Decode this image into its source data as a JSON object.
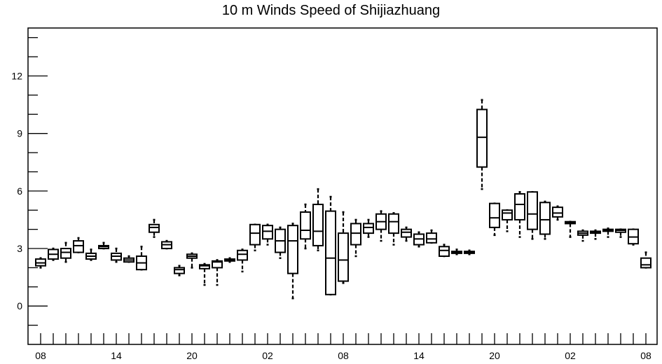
{
  "chart_data": {
    "type": "box",
    "title": "10 m Winds Speed of Shijiazhuang",
    "xlabel": "",
    "ylabel": "",
    "ylim": [
      -2,
      14.5
    ],
    "y_ticks": [
      0,
      3,
      6,
      9,
      12
    ],
    "x_tick_labels": [
      "08",
      "14",
      "20",
      "02",
      "08",
      "14",
      "20",
      "02",
      "08"
    ],
    "x_tick_label_index": [
      0,
      6,
      12,
      18,
      24,
      30,
      36,
      42,
      48
    ],
    "n_positions": 49,
    "grid": false,
    "boxes": [
      {
        "i": 0,
        "whisker_low": 2.0,
        "q1": 2.1,
        "median": 2.25,
        "q3": 2.45,
        "whisker_high": 2.5
      },
      {
        "i": 1,
        "whisker_low": 2.4,
        "q1": 2.45,
        "median": 2.7,
        "q3": 2.95,
        "whisker_high": 3.0
      },
      {
        "i": 2,
        "whisker_low": 2.3,
        "q1": 2.5,
        "median": 2.8,
        "q3": 3.0,
        "whisker_high": 3.3
      },
      {
        "i": 3,
        "whisker_low": 2.8,
        "q1": 2.8,
        "median": 3.15,
        "q3": 3.4,
        "whisker_high": 3.55
      },
      {
        "i": 4,
        "whisker_low": 2.4,
        "q1": 2.45,
        "median": 2.6,
        "q3": 2.75,
        "whisker_high": 2.95
      },
      {
        "i": 5,
        "whisker_low": 3.0,
        "q1": 3.0,
        "median": 3.1,
        "q3": 3.15,
        "whisker_high": 3.3
      },
      {
        "i": 6,
        "whisker_low": 2.3,
        "q1": 2.4,
        "median": 2.6,
        "q3": 2.75,
        "whisker_high": 3.0
      },
      {
        "i": 7,
        "whisker_low": 2.3,
        "q1": 2.3,
        "median": 2.4,
        "q3": 2.5,
        "whisker_high": 2.6
      },
      {
        "i": 8,
        "whisker_low": 1.9,
        "q1": 1.9,
        "median": 2.25,
        "q3": 2.6,
        "whisker_high": 3.1
      },
      {
        "i": 9,
        "whisker_low": 3.6,
        "q1": 3.85,
        "median": 4.1,
        "q3": 4.25,
        "whisker_high": 4.5
      },
      {
        "i": 10,
        "whisker_low": 3.0,
        "q1": 3.0,
        "median": 3.2,
        "q3": 3.35,
        "whisker_high": 3.4
      },
      {
        "i": 11,
        "whisker_low": 1.6,
        "q1": 1.7,
        "median": 1.9,
        "q3": 2.0,
        "whisker_high": 2.1
      },
      {
        "i": 12,
        "whisker_low": 2.0,
        "q1": 2.5,
        "median": 2.6,
        "q3": 2.7,
        "whisker_high": 2.75
      },
      {
        "i": 13,
        "whisker_low": 1.1,
        "q1": 1.95,
        "median": 2.1,
        "q3": 2.15,
        "whisker_high": 2.2
      },
      {
        "i": 14,
        "whisker_low": 1.1,
        "q1": 2.0,
        "median": 2.3,
        "q3": 2.35,
        "whisker_high": 2.4
      },
      {
        "i": 15,
        "whisker_low": 2.3,
        "q1": 2.35,
        "median": 2.4,
        "q3": 2.45,
        "whisker_high": 2.5
      },
      {
        "i": 16,
        "whisker_low": 1.8,
        "q1": 2.4,
        "median": 2.7,
        "q3": 2.9,
        "whisker_high": 2.95
      },
      {
        "i": 17,
        "whisker_low": 2.9,
        "q1": 3.2,
        "median": 3.8,
        "q3": 4.25,
        "whisker_high": 4.25
      },
      {
        "i": 18,
        "whisker_low": 3.2,
        "q1": 3.5,
        "median": 3.9,
        "q3": 4.2,
        "whisker_high": 4.25
      },
      {
        "i": 19,
        "whisker_low": 2.5,
        "q1": 2.8,
        "median": 3.4,
        "q3": 4.0,
        "whisker_high": 4.1
      },
      {
        "i": 20,
        "whisker_low": 0.4,
        "q1": 1.7,
        "median": 3.4,
        "q3": 4.2,
        "whisker_high": 4.3
      },
      {
        "i": 21,
        "whisker_low": 3.0,
        "q1": 3.5,
        "median": 3.95,
        "q3": 4.9,
        "whisker_high": 5.3
      },
      {
        "i": 22,
        "whisker_low": 2.9,
        "q1": 3.15,
        "median": 3.9,
        "q3": 5.3,
        "whisker_high": 6.1
      },
      {
        "i": 23,
        "whisker_low": 0.6,
        "q1": 0.6,
        "median": 2.5,
        "q3": 4.95,
        "whisker_high": 5.7
      },
      {
        "i": 24,
        "whisker_low": 1.2,
        "q1": 1.3,
        "median": 2.4,
        "q3": 3.8,
        "whisker_high": 4.9
      },
      {
        "i": 25,
        "whisker_low": 2.6,
        "q1": 3.2,
        "median": 3.8,
        "q3": 4.3,
        "whisker_high": 4.5
      },
      {
        "i": 26,
        "whisker_low": 3.6,
        "q1": 3.8,
        "median": 4.1,
        "q3": 4.3,
        "whisker_high": 4.5
      },
      {
        "i": 27,
        "whisker_low": 3.4,
        "q1": 4.0,
        "median": 4.4,
        "q3": 4.8,
        "whisker_high": 4.95
      },
      {
        "i": 28,
        "whisker_low": 3.2,
        "q1": 3.8,
        "median": 4.4,
        "q3": 4.8,
        "whisker_high": 4.85
      },
      {
        "i": 29,
        "whisker_low": 3.4,
        "q1": 3.6,
        "median": 3.85,
        "q3": 4.0,
        "whisker_high": 4.1
      },
      {
        "i": 30,
        "whisker_low": 3.1,
        "q1": 3.2,
        "median": 3.5,
        "q3": 3.75,
        "whisker_high": 3.85
      },
      {
        "i": 31,
        "whisker_low": 3.3,
        "q1": 3.3,
        "median": 3.5,
        "q3": 3.8,
        "whisker_high": 3.95
      },
      {
        "i": 32,
        "whisker_low": 2.6,
        "q1": 2.6,
        "median": 2.9,
        "q3": 3.1,
        "whisker_high": 3.2
      },
      {
        "i": 33,
        "whisker_low": 2.7,
        "q1": 2.75,
        "median": 2.8,
        "q3": 2.85,
        "whisker_high": 2.95
      },
      {
        "i": 34,
        "whisker_low": 2.7,
        "q1": 2.75,
        "median": 2.8,
        "q3": 2.85,
        "whisker_high": 2.9
      },
      {
        "i": 35,
        "whisker_low": 6.1,
        "q1": 7.25,
        "median": 8.8,
        "q3": 10.25,
        "whisker_high": 10.75
      },
      {
        "i": 36,
        "whisker_low": 3.7,
        "q1": 4.1,
        "median": 4.6,
        "q3": 5.35,
        "whisker_high": 5.35
      },
      {
        "i": 37,
        "whisker_low": 3.9,
        "q1": 4.5,
        "median": 4.85,
        "q3": 5.0,
        "whisker_high": 5.0
      },
      {
        "i": 38,
        "whisker_low": 3.6,
        "q1": 4.5,
        "median": 5.3,
        "q3": 5.85,
        "whisker_high": 5.95
      },
      {
        "i": 39,
        "whisker_low": 3.5,
        "q1": 4.0,
        "median": 4.8,
        "q3": 5.95,
        "whisker_high": 5.95
      },
      {
        "i": 40,
        "whisker_low": 3.5,
        "q1": 3.75,
        "median": 4.5,
        "q3": 5.4,
        "whisker_high": 5.45
      },
      {
        "i": 41,
        "whisker_low": 4.5,
        "q1": 4.65,
        "median": 4.85,
        "q3": 5.15,
        "whisker_high": 5.2
      },
      {
        "i": 42,
        "whisker_low": 3.6,
        "q1": 4.3,
        "median": 4.35,
        "q3": 4.4,
        "whisker_high": 4.4
      },
      {
        "i": 43,
        "whisker_low": 3.4,
        "q1": 3.7,
        "median": 3.8,
        "q3": 3.9,
        "whisker_high": 3.95
      },
      {
        "i": 44,
        "whisker_low": 3.5,
        "q1": 3.8,
        "median": 3.85,
        "q3": 3.9,
        "whisker_high": 3.95
      },
      {
        "i": 45,
        "whisker_low": 3.6,
        "q1": 3.9,
        "median": 3.95,
        "q3": 4.0,
        "whisker_high": 4.05
      },
      {
        "i": 46,
        "whisker_low": 3.6,
        "q1": 3.85,
        "median": 3.95,
        "q3": 4.0,
        "whisker_high": 4.0
      },
      {
        "i": 47,
        "whisker_low": 3.2,
        "q1": 3.25,
        "median": 3.6,
        "q3": 4.0,
        "whisker_high": 4.0
      },
      {
        "i": 48,
        "whisker_low": 2.0,
        "q1": 2.0,
        "median": 2.15,
        "q3": 2.5,
        "whisker_high": 2.8
      }
    ]
  }
}
